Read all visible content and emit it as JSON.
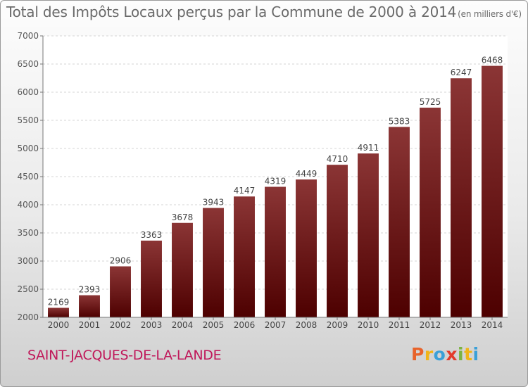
{
  "chart_data": {
    "type": "bar",
    "title": "Total des Impôts Locaux perçus par la Commune de 2000 à 2014",
    "unit_note": "(en milliers d'€)",
    "xlabel": "",
    "ylabel": "",
    "categories": [
      "2000",
      "2001",
      "2002",
      "2003",
      "2004",
      "2005",
      "2006",
      "2007",
      "2008",
      "2009",
      "2010",
      "2011",
      "2012",
      "2013",
      "2014"
    ],
    "values": [
      2169,
      2393,
      2906,
      3363,
      3678,
      3943,
      4147,
      4319,
      4449,
      4710,
      4911,
      5383,
      5725,
      6247,
      6468
    ],
    "ylim": [
      2000,
      7000
    ],
    "yticks": [
      2000,
      2500,
      3000,
      3500,
      4000,
      4500,
      5000,
      5500,
      6000,
      6500,
      7000
    ],
    "grid": true,
    "bar_color_top": "#8b3535",
    "bar_color_bottom": "#4d0000"
  },
  "footer": {
    "commune": "SAINT-JACQUES-DE-LA-LANDE",
    "brand_letters": [
      "P",
      "r",
      "o",
      "x",
      "i",
      "t",
      "i"
    ],
    "brand_colors": [
      "#e8632a",
      "#f0b419",
      "#3aa0d8",
      "#e33a2b",
      "#7cb342",
      "#f0b419",
      "#3aa0d8"
    ]
  }
}
